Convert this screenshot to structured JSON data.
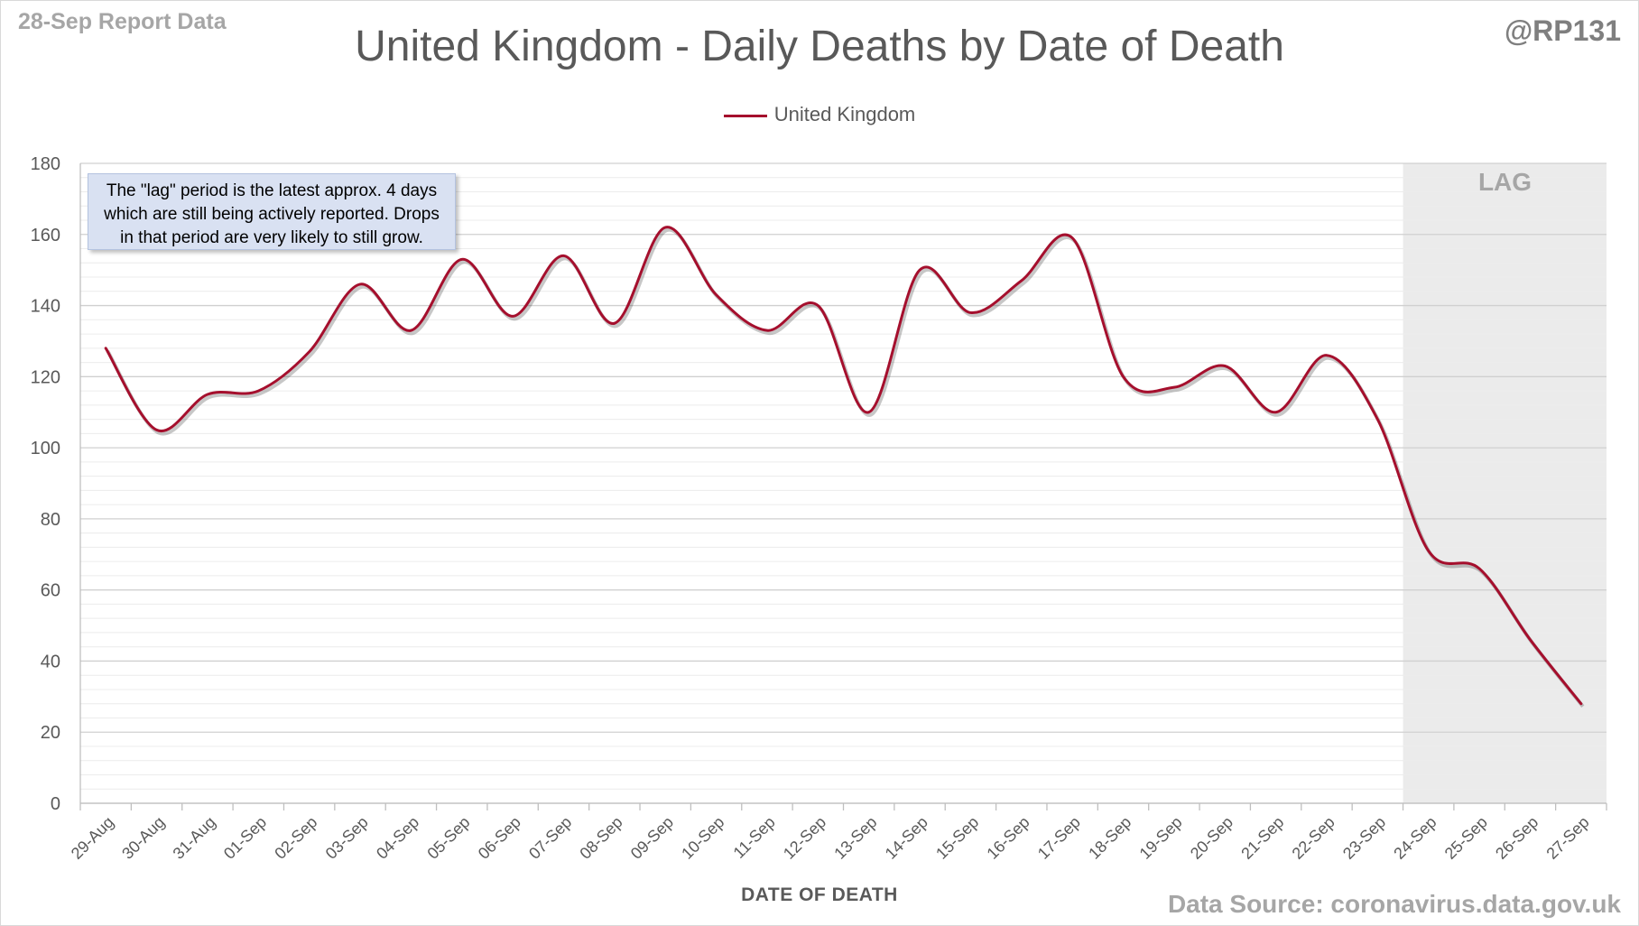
{
  "header": {
    "report_label": "28-Sep Report Data",
    "handle": "@RP131"
  },
  "footer": {
    "source": "Data Source: coronavirus.data.gov.uk"
  },
  "annotations": {
    "note_lines": [
      "The \"lag\" period is the latest approx. 4 days",
      "which are still being actively reported.  Drops",
      "in that period are very likely to still grow."
    ],
    "lag_label": "LAG"
  },
  "colors": {
    "series": "#a50f2d",
    "lag_shade": "#ebebeb",
    "note_bg": "#d9e1f2"
  },
  "chart_data": {
    "type": "line",
    "title": "United Kingdom - Daily Deaths by Date of Death",
    "xlabel": "DATE OF DEATH",
    "ylabel": "",
    "ylim": [
      0,
      180
    ],
    "yticks": [
      0,
      20,
      40,
      60,
      80,
      100,
      120,
      140,
      160,
      180
    ],
    "grid": true,
    "minor_grid": true,
    "legend_position": "top-center",
    "smoothed": true,
    "lag_period": {
      "start": "24-Sep",
      "end": "27-Sep"
    },
    "categories": [
      "29-Aug",
      "30-Aug",
      "31-Aug",
      "01-Sep",
      "02-Sep",
      "03-Sep",
      "04-Sep",
      "05-Sep",
      "06-Sep",
      "07-Sep",
      "08-Sep",
      "09-Sep",
      "10-Sep",
      "11-Sep",
      "12-Sep",
      "13-Sep",
      "14-Sep",
      "15-Sep",
      "16-Sep",
      "17-Sep",
      "18-Sep",
      "19-Sep",
      "20-Sep",
      "21-Sep",
      "22-Sep",
      "23-Sep",
      "24-Sep",
      "25-Sep",
      "26-Sep",
      "27-Sep"
    ],
    "series": [
      {
        "name": "United Kingdom",
        "values": [
          128,
          105,
          115,
          116,
          127,
          146,
          133,
          153,
          137,
          154,
          135,
          162,
          143,
          133,
          140,
          110,
          150,
          138,
          147,
          159,
          120,
          117,
          123,
          110,
          126,
          108,
          71,
          66,
          46,
          28
        ]
      }
    ]
  }
}
